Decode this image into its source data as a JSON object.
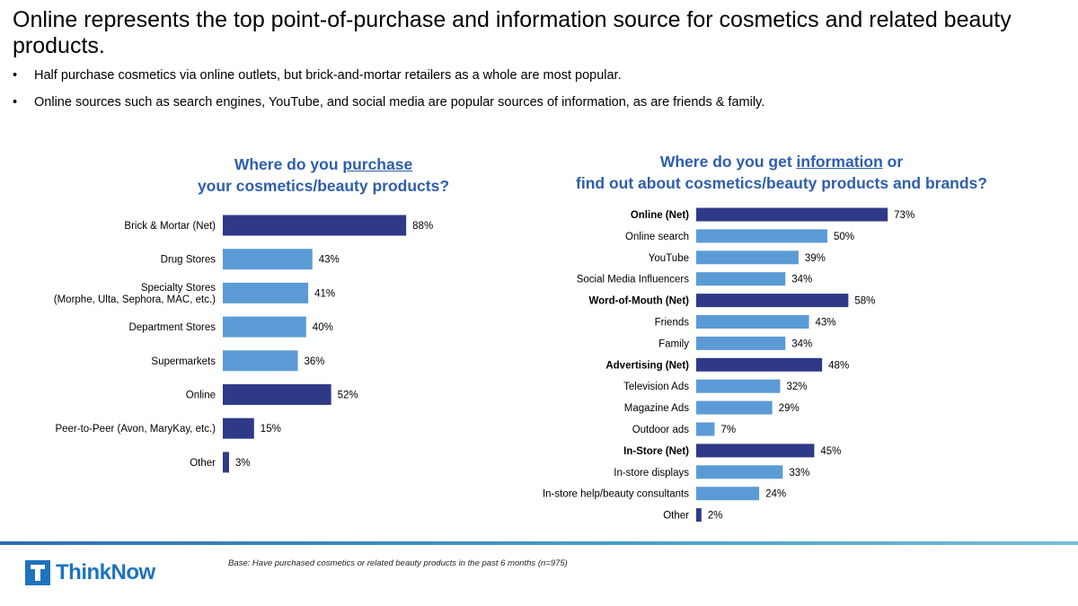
{
  "title": "Online represents the top point-of-purchase and information source for cosmetics and related beauty products.",
  "bullets": [
    "Half purchase cosmetics via online outlets, but brick-and-mortar retailers as a whole are most popular.",
    "Online sources such as search engines, YouTube, and social media are popular sources of information, as are friends & family."
  ],
  "bullet_symbol": "•",
  "colors": {
    "net": "#2E3A87",
    "sub": "#5B9BD5",
    "title_blue": "#2E5EAE"
  },
  "left_chart_title": {
    "part1": "Where do you ",
    "underlined": "purchase",
    "part2": "your cosmetics/beauty products?"
  },
  "right_chart_title": {
    "part1": "Where do you get ",
    "underlined": "information",
    "part2": " or",
    "line2": "find out about cosmetics/beauty products and brands?"
  },
  "chart_data": [
    {
      "type": "bar",
      "orientation": "horizontal",
      "title": "Where do you purchase your cosmetics/beauty products?",
      "categories": [
        "Brick & Mortar (Net)",
        "Drug Stores",
        "Specialty Stores\n(Morphe, Ulta, Sephora, MAC, etc.)",
        "Department Stores",
        "Supermarkets",
        "Online",
        "Peer-to-Peer (Avon, MaryKay, etc.)",
        "Other"
      ],
      "values": [
        88,
        43,
        41,
        40,
        36,
        52,
        15,
        3
      ],
      "net": [
        true,
        false,
        false,
        false,
        false,
        true,
        true,
        true
      ],
      "bold": [
        false,
        false,
        false,
        false,
        false,
        false,
        false,
        false
      ],
      "value_suffix": "%",
      "xlim": [
        0,
        100
      ]
    },
    {
      "type": "bar",
      "orientation": "horizontal",
      "title": "Where do you get information or find out about cosmetics/beauty products and brands?",
      "categories": [
        "Online (Net)",
        "Online search",
        "YouTube",
        "Social Media Influencers",
        "Word-of-Mouth (Net)",
        "Friends",
        "Family",
        "Advertising (Net)",
        "Television Ads",
        "Magazine Ads",
        "Outdoor ads",
        "In-Store (Net)",
        "In-store displays",
        "In-store help/beauty consultants",
        "Other"
      ],
      "values": [
        73,
        50,
        39,
        34,
        58,
        43,
        34,
        48,
        32,
        29,
        7,
        45,
        33,
        24,
        2
      ],
      "net": [
        true,
        false,
        false,
        false,
        true,
        false,
        false,
        true,
        false,
        false,
        false,
        true,
        false,
        false,
        true
      ],
      "bold": [
        true,
        false,
        false,
        false,
        true,
        false,
        false,
        true,
        false,
        false,
        false,
        true,
        false,
        false,
        false
      ],
      "value_suffix": "%",
      "xlim": [
        0,
        100
      ]
    }
  ],
  "footer": {
    "logo_text": "ThinkNow",
    "base_note": "Base: Have purchased cosmetics or related beauty products in the past 6 months (n=975)"
  }
}
